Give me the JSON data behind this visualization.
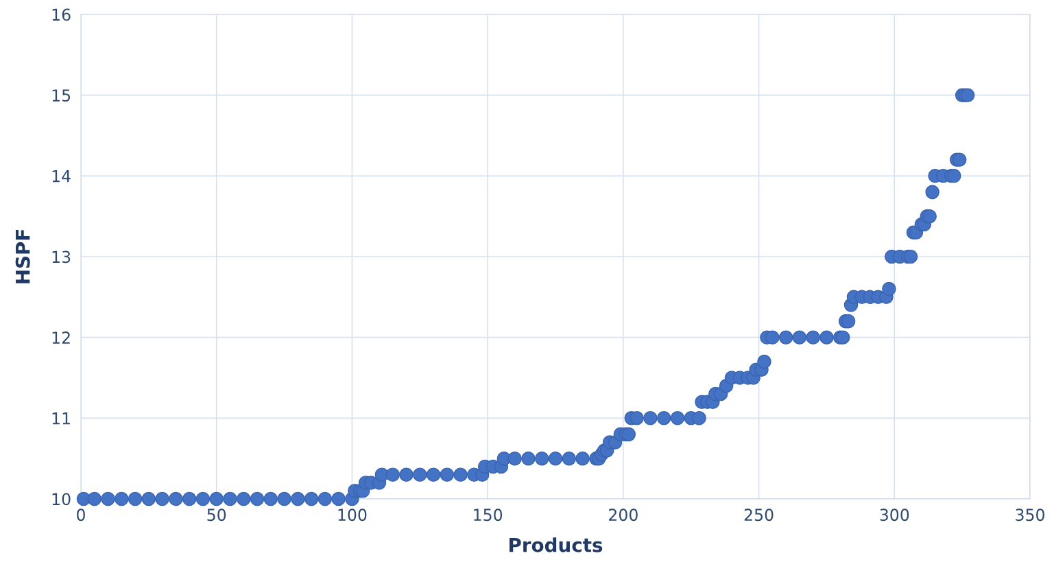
{
  "chart_data": {
    "type": "scatter",
    "xlabel": "Products",
    "ylabel": "HSPF",
    "x": [
      1,
      5,
      10,
      15,
      20,
      25,
      30,
      35,
      40,
      45,
      50,
      55,
      60,
      65,
      70,
      75,
      80,
      85,
      90,
      95,
      100,
      101,
      103,
      104,
      105,
      107,
      110,
      111,
      115,
      120,
      125,
      130,
      135,
      140,
      145,
      148,
      149,
      152,
      155,
      156,
      160,
      165,
      170,
      175,
      180,
      185,
      190,
      191,
      192,
      193,
      194,
      195,
      197,
      199,
      201,
      202,
      203,
      205,
      210,
      215,
      220,
      225,
      228,
      229,
      231,
      233,
      234,
      236,
      238,
      240,
      243,
      246,
      248,
      249,
      251,
      252,
      253,
      255,
      260,
      265,
      270,
      275,
      280,
      281,
      282,
      283,
      284,
      285,
      288,
      291,
      294,
      297,
      298,
      299,
      302,
      305,
      306,
      307,
      308,
      310,
      311,
      312,
      313,
      314,
      315,
      318,
      321,
      322,
      323,
      324,
      325,
      326,
      327
    ],
    "values": [
      10,
      10,
      10,
      10,
      10,
      10,
      10,
      10,
      10,
      10,
      10,
      10,
      10,
      10,
      10,
      10,
      10,
      10,
      10,
      10,
      10,
      10.1,
      10.1,
      10.1,
      10.2,
      10.2,
      10.2,
      10.3,
      10.3,
      10.3,
      10.3,
      10.3,
      10.3,
      10.3,
      10.3,
      10.3,
      10.4,
      10.4,
      10.4,
      10.5,
      10.5,
      10.5,
      10.5,
      10.5,
      10.5,
      10.5,
      10.5,
      10.5,
      10.55,
      10.6,
      10.6,
      10.7,
      10.7,
      10.8,
      10.8,
      10.8,
      11,
      11,
      11,
      11,
      11,
      11,
      11,
      11.2,
      11.2,
      11.2,
      11.3,
      11.3,
      11.4,
      11.5,
      11.5,
      11.5,
      11.5,
      11.6,
      11.6,
      11.7,
      12,
      12,
      12,
      12,
      12,
      12,
      12,
      12,
      12.2,
      12.2,
      12.4,
      12.5,
      12.5,
      12.5,
      12.5,
      12.5,
      12.6,
      13,
      13,
      13,
      13,
      13.3,
      13.3,
      13.4,
      13.4,
      13.5,
      13.5,
      13.8,
      14,
      14,
      14,
      14,
      14.2,
      14.2,
      15,
      15,
      15
    ],
    "color": "#4472c4",
    "marker": "circle",
    "grid": true,
    "xlim": [
      0,
      350
    ],
    "xticks": [
      0,
      50,
      100,
      150,
      200,
      250,
      300,
      350
    ],
    "ylim": [
      10,
      16
    ],
    "yticks": [
      10,
      11,
      12,
      13,
      14,
      15,
      16
    ]
  }
}
